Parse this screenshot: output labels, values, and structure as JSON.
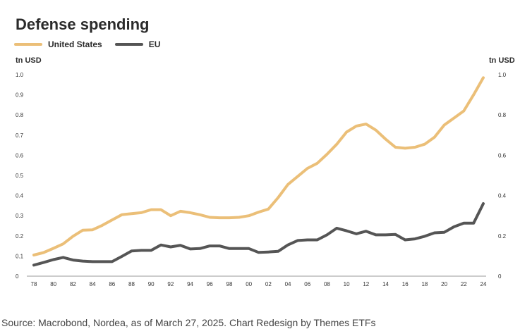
{
  "title": "Defense spending",
  "source": "Source: Macrobond, Nordea, as of March 27, 2025. Chart Redesign by Themes ETFs",
  "chart_data": {
    "type": "line",
    "title": "Defense spending",
    "y_unit_left": "tn USD",
    "y_unit_right": "tn USD",
    "legend_position": "top-left",
    "grid": false,
    "xlim": [
      1978,
      2024
    ],
    "ylim_left": [
      0,
      1.0
    ],
    "ylim_right": [
      0,
      1.0
    ],
    "y_ticks_left": [
      "0",
      "0.1",
      "0.2",
      "0.3",
      "0.4",
      "0.5",
      "0.6",
      "0.7",
      "0.8",
      "0.9",
      "1.0"
    ],
    "y_ticks_right": [
      "0",
      "0.2",
      "0.4",
      "0.6",
      "0.8",
      "1.0"
    ],
    "x_ticks": [
      "78",
      "80",
      "82",
      "84",
      "86",
      "88",
      "90",
      "92",
      "94",
      "96",
      "98",
      "00",
      "02",
      "04",
      "06",
      "08",
      "10",
      "12",
      "14",
      "16",
      "18",
      "20",
      "22",
      "24"
    ],
    "series": [
      {
        "name": "United States",
        "color": "#EBBF78",
        "x": [
          1978,
          1979,
          1980,
          1981,
          1982,
          1983,
          1984,
          1985,
          1986,
          1987,
          1988,
          1989,
          1990,
          1991,
          1992,
          1993,
          1994,
          1995,
          1996,
          1997,
          1998,
          1999,
          2000,
          2001,
          2002,
          2003,
          2004,
          2005,
          2006,
          2007,
          2008,
          2009,
          2010,
          2011,
          2012,
          2013,
          2014,
          2015,
          2016,
          2017,
          2018,
          2019,
          2020,
          2021,
          2022,
          2023,
          2024
        ],
        "values": [
          0.105,
          0.117,
          0.138,
          0.16,
          0.198,
          0.228,
          0.23,
          0.252,
          0.279,
          0.305,
          0.31,
          0.315,
          0.33,
          0.33,
          0.3,
          0.322,
          0.315,
          0.305,
          0.292,
          0.29,
          0.29,
          0.292,
          0.3,
          0.318,
          0.333,
          0.39,
          0.455,
          0.495,
          0.535,
          0.56,
          0.605,
          0.655,
          0.715,
          0.745,
          0.755,
          0.725,
          0.68,
          0.64,
          0.635,
          0.64,
          0.655,
          0.69,
          0.75,
          0.785,
          0.82,
          0.9,
          0.985
        ]
      },
      {
        "name": "EU",
        "color": "#555555",
        "x": [
          1978,
          1979,
          1980,
          1981,
          1982,
          1983,
          1984,
          1985,
          1986,
          1987,
          1988,
          1989,
          1990,
          1991,
          1992,
          1993,
          1994,
          1995,
          1996,
          1997,
          1998,
          1999,
          2000,
          2001,
          2002,
          2003,
          2004,
          2005,
          2006,
          2007,
          2008,
          2009,
          2010,
          2011,
          2012,
          2013,
          2014,
          2015,
          2016,
          2017,
          2018,
          2019,
          2020,
          2021,
          2022,
          2023,
          2024
        ],
        "values": [
          0.055,
          0.068,
          0.082,
          0.093,
          0.08,
          0.075,
          0.072,
          0.072,
          0.072,
          0.098,
          0.125,
          0.128,
          0.128,
          0.155,
          0.145,
          0.153,
          0.135,
          0.137,
          0.15,
          0.15,
          0.137,
          0.137,
          0.137,
          0.118,
          0.12,
          0.123,
          0.155,
          0.177,
          0.18,
          0.18,
          0.205,
          0.238,
          0.225,
          0.21,
          0.223,
          0.205,
          0.205,
          0.207,
          0.18,
          0.185,
          0.198,
          0.215,
          0.218,
          0.245,
          0.263,
          0.263,
          0.36
        ]
      }
    ]
  }
}
